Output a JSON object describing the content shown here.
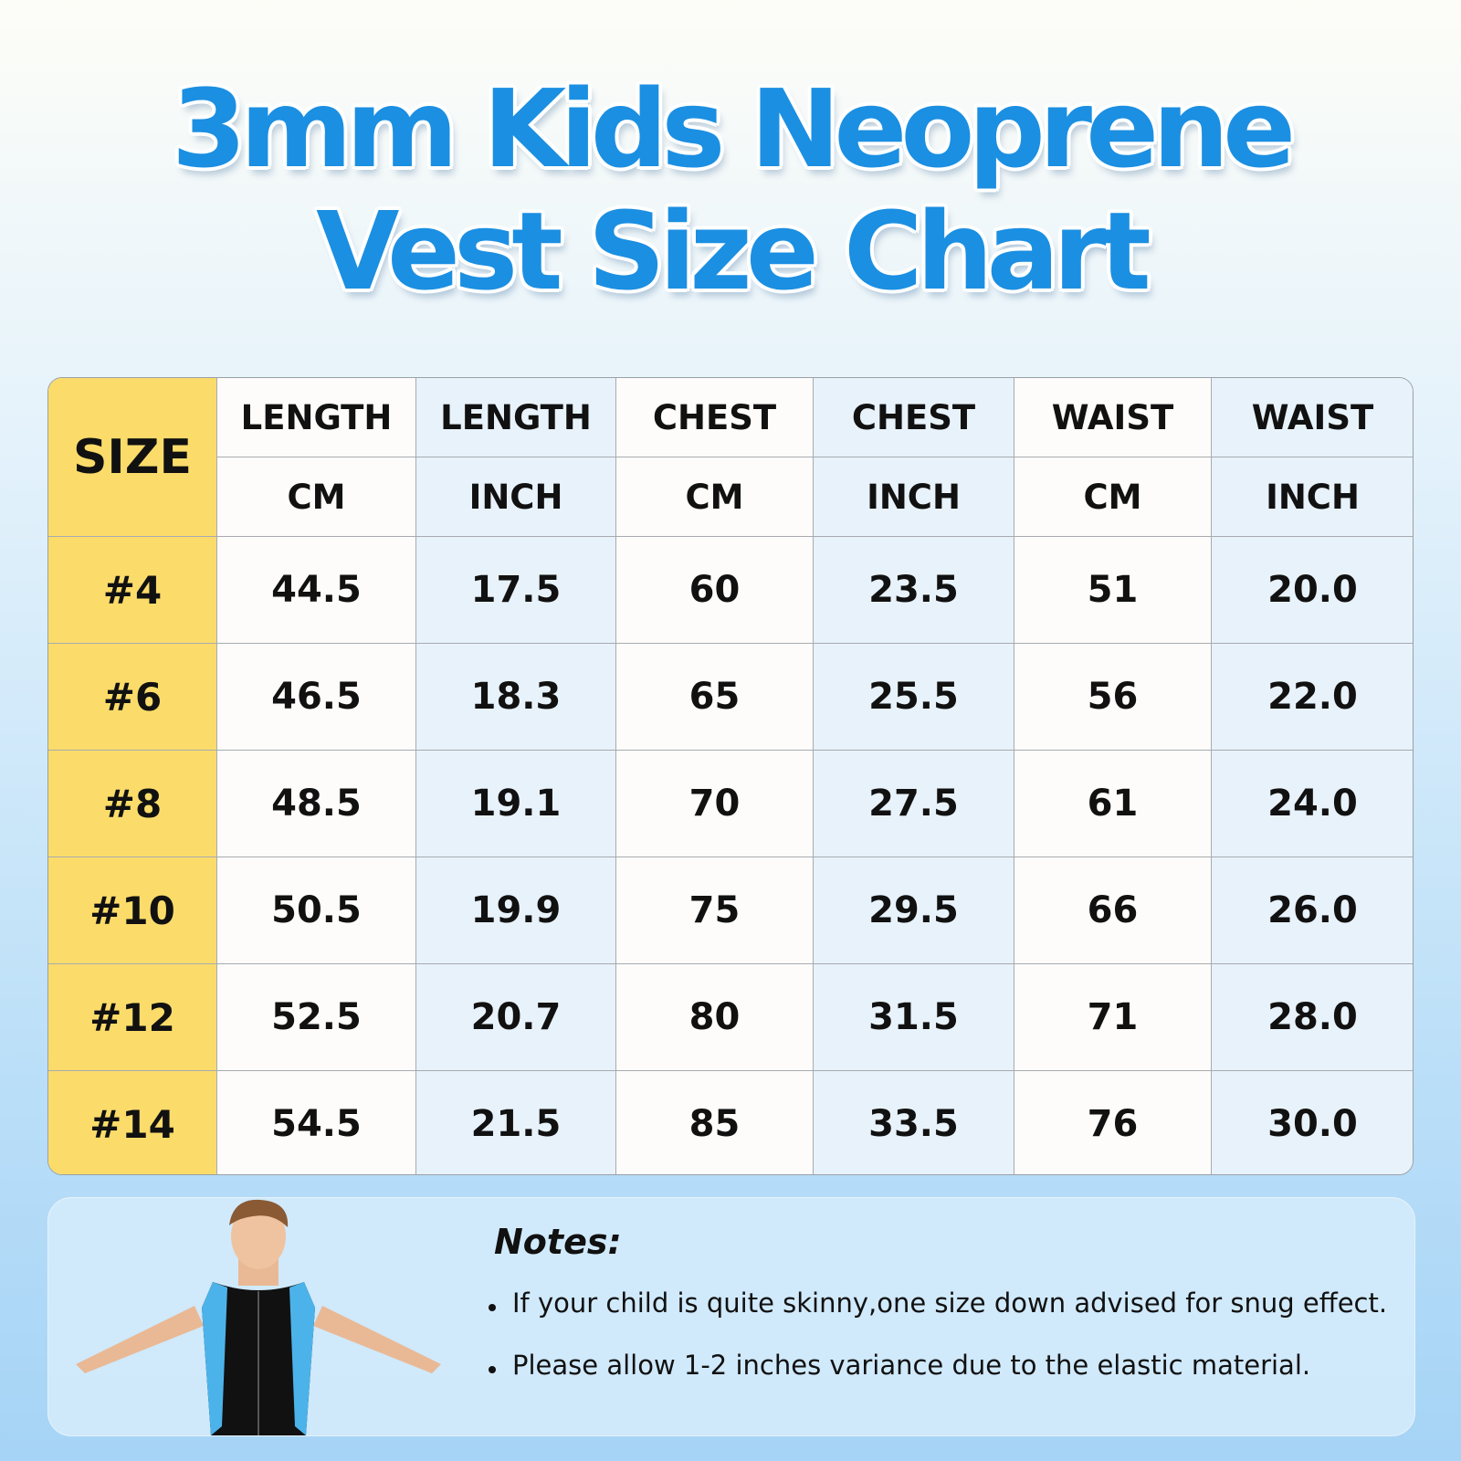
{
  "header": {
    "title": [
      "3mm Kids Neoprene",
      "Vest Size Chart"
    ]
  },
  "table": {
    "size_header": "SIZE",
    "columns": [
      {
        "measure": "LENGTH",
        "unit": "CM"
      },
      {
        "measure": "LENGTH",
        "unit": "INCH"
      },
      {
        "measure": "CHEST",
        "unit": "CM"
      },
      {
        "measure": "CHEST",
        "unit": "INCH"
      },
      {
        "measure": "WAIST",
        "unit": "CM"
      },
      {
        "measure": "WAIST",
        "unit": "INCH"
      }
    ],
    "rows": [
      [
        "#4",
        "44.5",
        "17.5",
        "60",
        "23.5",
        "51",
        "20.0"
      ],
      [
        "#6",
        "46.5",
        "18.3",
        "65",
        "25.5",
        "56",
        "22.0"
      ],
      [
        "#8",
        "48.5",
        "19.1",
        "70",
        "27.5",
        "61",
        "24.0"
      ],
      [
        "#10",
        "50.5",
        "19.9",
        "75",
        "29.5",
        "66",
        "26.0"
      ],
      [
        "#12",
        "52.5",
        "20.7",
        "80",
        "31.5",
        "71",
        "28.0"
      ],
      [
        "#14",
        "54.5",
        "21.5",
        "85",
        "33.5",
        "76",
        "30.0"
      ]
    ]
  },
  "notes": {
    "title": "Notes:",
    "items": [
      "If your child is quite skinny,one size down advised for snug effect.",
      "Please allow 1-2 inches variance due to the elastic material."
    ]
  }
}
